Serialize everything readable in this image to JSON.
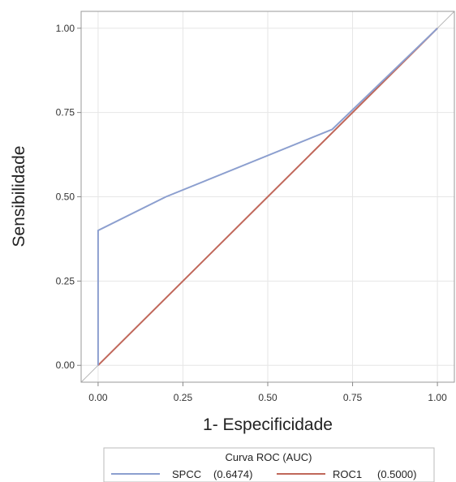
{
  "chart_data": {
    "type": "line",
    "title": "",
    "xlabel": "1- Especificidade",
    "ylabel": "Sensibilidade",
    "xlim": [
      -0.05,
      1.05
    ],
    "ylim": [
      -0.05,
      1.05
    ],
    "xticks": [
      "0.00",
      "0.25",
      "0.50",
      "0.75",
      "1.00"
    ],
    "yticks": [
      "0.00",
      "0.25",
      "0.50",
      "0.75",
      "1.00"
    ],
    "grid": true,
    "legend_title": "Curva ROC (AUC)",
    "legend_position": "bottom",
    "series": [
      {
        "name": "SPCC",
        "auc_label": "(0.6474)",
        "color": "#8c9fcf",
        "x": [
          0.0,
          0.0,
          0.2,
          0.69,
          1.0
        ],
        "y": [
          0.0,
          0.4,
          0.5,
          0.7,
          1.0
        ]
      },
      {
        "name": "ROC1",
        "auc_label": "(0.5000)",
        "color": "#c0675a",
        "x": [
          0.0,
          1.0
        ],
        "y": [
          0.0,
          1.0
        ]
      }
    ]
  }
}
